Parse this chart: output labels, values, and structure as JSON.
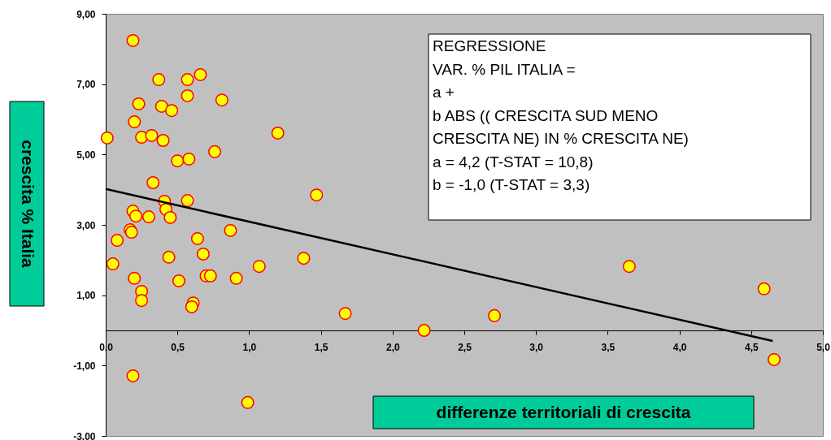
{
  "chart_data": {
    "type": "scatter",
    "xlabel": "differenze territoriali di crescita",
    "ylabel": "crescita % Italia",
    "annotations": [
      "REGRESSIONE\nVAR. % PIL ITALIA =\na +\nb ABS (( CRESCITA SUD MENO\nCRESCITA NE) IN % CRESCITA NE)\na = 4,2 (T-STAT = 10,8)\nb = -1,0 (T-STAT = 3,3)"
    ],
    "xlim": [
      0,
      5
    ],
    "xticks": [
      {
        "value": 0,
        "label": "0,0"
      },
      {
        "value": 0.5,
        "label": "0,5"
      },
      {
        "value": 1,
        "label": "1,0"
      },
      {
        "value": 1.5,
        "label": "1,5"
      },
      {
        "value": 2,
        "label": "2,0"
      },
      {
        "value": 2.5,
        "label": "2,5"
      },
      {
        "value": 3,
        "label": "3,0"
      },
      {
        "value": 3.5,
        "label": "3,5"
      },
      {
        "value": 4,
        "label": "4,0"
      },
      {
        "value": 4.5,
        "label": "4,5"
      },
      {
        "value": 5,
        "label": "5,0"
      }
    ],
    "ylim": [
      -3,
      9
    ],
    "yticks": [
      {
        "value": -3,
        "label": "-3,00"
      },
      {
        "value": -1,
        "label": "-1,00"
      },
      {
        "value": 1,
        "label": "1,00"
      },
      {
        "value": 3,
        "label": "3,00"
      },
      {
        "value": 5,
        "label": "5,00"
      },
      {
        "value": 7,
        "label": "7,00"
      },
      {
        "value": 9,
        "label": "9,00"
      }
    ],
    "grid": false,
    "series": [
      {
        "marker": "circle",
        "color": "#ffff00",
        "x": [
          0.01,
          0.19,
          0.37,
          0.57,
          0.66,
          0.23,
          0.39,
          0.46,
          0.57,
          0.81,
          0.2,
          0.25,
          0.32,
          0.4,
          1.2,
          0.5,
          0.58,
          0.76,
          0.33,
          1.47,
          0.41,
          0.57,
          0.42,
          0.19,
          0.21,
          0.3,
          0.45,
          0.17,
          0.18,
          0.08,
          0.64,
          0.87,
          0.05,
          0.44,
          0.68,
          1.07,
          1.38,
          0.2,
          0.51,
          0.7,
          0.73,
          0.91,
          0.25,
          0.25,
          0.61,
          0.6,
          1.67,
          2.71,
          2.22,
          3.65,
          4.59,
          4.66,
          0.19,
          0.99
        ],
        "values": [
          5.47,
          8.24,
          7.13,
          7.13,
          7.27,
          6.44,
          6.37,
          6.25,
          6.67,
          6.55,
          5.93,
          5.49,
          5.54,
          5.4,
          5.61,
          4.82,
          4.87,
          5.08,
          4.2,
          3.85,
          3.67,
          3.69,
          3.44,
          3.39,
          3.25,
          3.23,
          3.21,
          2.86,
          2.79,
          2.56,
          2.61,
          2.84,
          1.89,
          2.08,
          2.17,
          1.82,
          2.05,
          1.48,
          1.41,
          1.55,
          1.55,
          1.48,
          1.11,
          0.85,
          0.78,
          0.67,
          0.48,
          0.42,
          0.0,
          1.82,
          1.18,
          -0.83,
          -1.29,
          -2.05
        ]
      },
      {
        "type": "line",
        "color": "#000000",
        "line_style": "solid",
        "x": [
          0.0,
          4.65
        ],
        "values": [
          4.02,
          -0.3
        ]
      }
    ]
  }
}
